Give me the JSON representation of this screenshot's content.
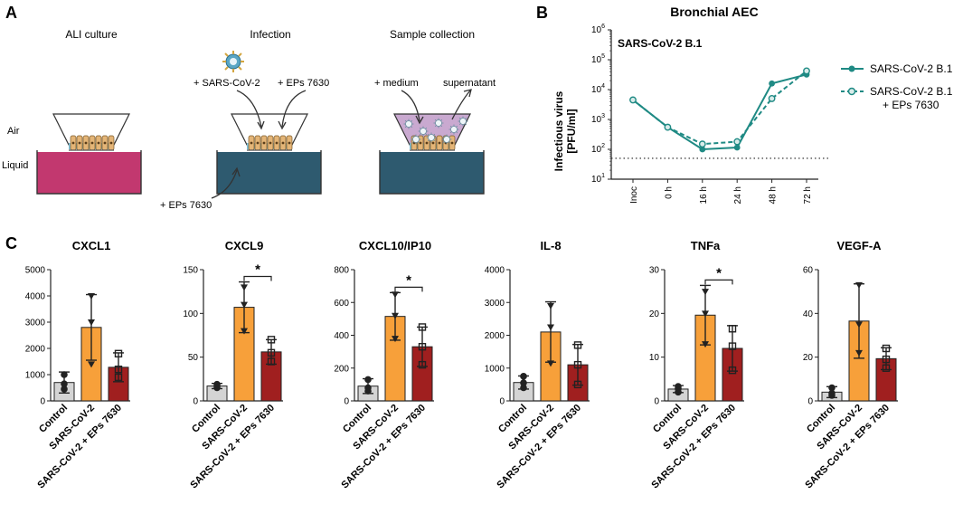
{
  "panels": {
    "a": "A",
    "b": "B",
    "c": "C"
  },
  "panel_a": {
    "steps": [
      "ALI culture",
      "Infection",
      "Sample collection"
    ],
    "air_label": "Air",
    "liquid_label": "Liquid",
    "sars_label": "+ SARS-CoV-2",
    "eps_top_label": "+ EPs 7630",
    "eps_bottom_label": "+ EPs 7630",
    "medium_label": "+ medium",
    "supernatant_label": "supernatant",
    "colors": {
      "pink": "#c2386f",
      "dark": "#2e5a6f",
      "lilac": "#c9a9d0",
      "cells": "#e4b577"
    }
  },
  "chart_data": [
    {
      "id": "bronchial",
      "type": "line",
      "title": "Bronchial AEC",
      "inner_title": "SARS-CoV-2 B.1",
      "ylabel": "Infectious virus",
      "ylabel_unit": "[PFU/ml]",
      "yscale": "log",
      "ylim_exp": [
        1,
        6
      ],
      "ytick_base": "10",
      "ytick_exps": [
        "1",
        "2",
        "3",
        "4",
        "5",
        "6"
      ],
      "categories": [
        "Inoc",
        "0 h",
        "16 h",
        "24 h",
        "48 h",
        "72 h"
      ],
      "detection_limit": 50,
      "series": [
        {
          "name": "SARS-CoV-2 B.1",
          "values": [
            4500,
            550,
            100,
            115,
            16000,
            32000
          ],
          "color": "#1f8a84",
          "dashed": false
        },
        {
          "name": "SARS-CoV-2 B.1 + EPs 7630",
          "values": [
            4500,
            550,
            150,
            180,
            5000,
            42000
          ],
          "color": "#1f8a84",
          "dashed": true
        }
      ],
      "legend": [
        {
          "line1": "SARS-CoV-2 B.1",
          "line2": ""
        },
        {
          "line1": "SARS-CoV-2 B.1",
          "line2": "+ EPs 7630"
        }
      ]
    },
    {
      "id": "cxcl1",
      "type": "bar",
      "title": "CXCL1",
      "ylim": [
        0,
        5000
      ],
      "yticks": [
        "0",
        "1000",
        "2000",
        "3000",
        "4000",
        "5000"
      ],
      "categories": [
        "Control",
        "SARS-CoV-2",
        "SARS-CoV-2 + EPs 7630"
      ],
      "values": [
        700,
        2800,
        1280
      ],
      "errors": [
        400,
        1250,
        550
      ],
      "points": [
        [
          1000,
          450,
          650
        ],
        [
          4000,
          1400,
          3000
        ],
        [
          1800,
          1200,
          900
        ]
      ],
      "significance": null
    },
    {
      "id": "cxcl9",
      "type": "bar",
      "title": "CXCL9",
      "ylim": [
        0,
        150
      ],
      "yticks": [
        "0",
        "50",
        "100",
        "150"
      ],
      "categories": [
        "Control",
        "SARS-CoV-2",
        "SARS-CoV-2 + EPs 7630"
      ],
      "values": [
        17,
        107,
        56
      ],
      "errors": [
        3,
        29,
        14
      ],
      "points": [
        [
          19,
          15,
          17
        ],
        [
          130,
          80,
          110
        ],
        [
          70,
          45,
          55
        ]
      ],
      "significance": "*"
    },
    {
      "id": "cxcl10",
      "type": "bar",
      "title": "CXCL10/IP10",
      "ylim": [
        0,
        800
      ],
      "yticks": [
        "0",
        "200",
        "400",
        "600",
        "800"
      ],
      "categories": [
        "Control",
        "SARS-CoV-2",
        "SARS-CoV-2 + EPs 7630"
      ],
      "values": [
        90,
        515,
        330
      ],
      "errors": [
        45,
        145,
        120
      ],
      "points": [
        [
          130,
          60,
          80
        ],
        [
          650,
          380,
          520
        ],
        [
          450,
          220,
          330
        ]
      ],
      "significance": "*"
    },
    {
      "id": "il8",
      "type": "bar",
      "title": "IL-8",
      "ylim": [
        0,
        4000
      ],
      "yticks": [
        "0",
        "1000",
        "2000",
        "3000",
        "4000"
      ],
      "categories": [
        "Control",
        "SARS-CoV-2",
        "SARS-CoV-2 + EPs 7630"
      ],
      "values": [
        560,
        2100,
        1100
      ],
      "errors": [
        200,
        920,
        620
      ],
      "points": [
        [
          750,
          400,
          550
        ],
        [
          2900,
          1150,
          2250
        ],
        [
          1700,
          500,
          1100
        ]
      ],
      "significance": null
    },
    {
      "id": "tnfa",
      "type": "bar",
      "title": "TNFa",
      "ylim": [
        0,
        30
      ],
      "yticks": [
        "0",
        "10",
        "20",
        "30"
      ],
      "categories": [
        "Control",
        "SARS-CoV-2",
        "SARS-CoV-2 + EPs 7630"
      ],
      "values": [
        2.7,
        19.6,
        12
      ],
      "errors": [
        0.8,
        6.8,
        5.2
      ],
      "points": [
        [
          3.3,
          2.0,
          2.8
        ],
        [
          25,
          13,
          20
        ],
        [
          16.5,
          7,
          12.5
        ]
      ],
      "significance": "*"
    },
    {
      "id": "vegfa",
      "type": "bar",
      "title": "VEGF-A",
      "ylim": [
        0,
        60
      ],
      "yticks": [
        "0",
        "20",
        "40",
        "60"
      ],
      "categories": [
        "Control",
        "SARS-CoV-2",
        "SARS-CoV-2 + EPs 7630"
      ],
      "values": [
        4,
        36.5,
        19.3
      ],
      "errors": [
        2.5,
        17,
        5
      ],
      "points": [
        [
          6,
          2.5,
          3.5
        ],
        [
          53,
          22,
          35
        ],
        [
          24,
          15,
          19
        ]
      ],
      "significance": null
    }
  ],
  "colors": {
    "control": "#d4d4d4",
    "sars": "#f7a03a",
    "eps": "#a01f1f",
    "teal": "#1f8a84",
    "axis": "#222222"
  }
}
